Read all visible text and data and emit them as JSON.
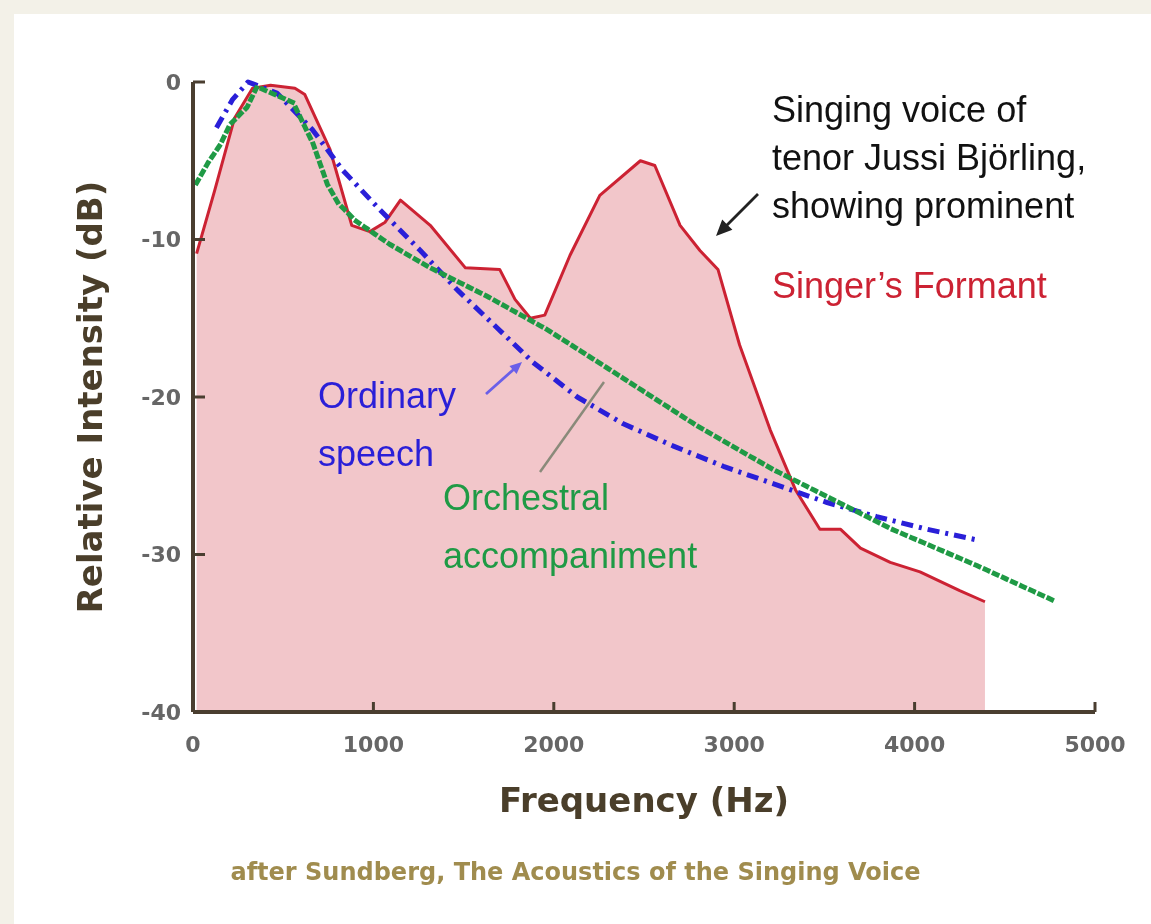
{
  "chart_data": {
    "type": "line",
    "xlabel": "Frequency (Hz)",
    "ylabel": "Relative Intensity (dB)",
    "xlim": [
      0,
      5000
    ],
    "xticks": [
      0,
      1000,
      2000,
      3000,
      4000,
      5000
    ],
    "ylim": [
      -40,
      0
    ],
    "yticks": [
      0,
      -10,
      -20,
      -30,
      -40
    ],
    "grid": false,
    "legend": false,
    "marker": "none",
    "series": [
      {
        "color": "#cc2233",
        "line_style": "solid",
        "x": [
          20,
          120,
          230,
          330,
          430,
          565,
          620,
          760,
          880,
          980,
          1065,
          1150,
          1315,
          1510,
          1700,
          1785,
          1870,
          1950,
          2090,
          2255,
          2480,
          2560,
          2700,
          2810,
          2910,
          3030,
          3200,
          3340,
          3475,
          3590,
          3700,
          3865,
          4030,
          4250,
          4390
        ],
        "values": [
          -10.9,
          -6.9,
          -2.3,
          -0.4,
          -0.2,
          -0.4,
          -0.8,
          -4.3,
          -9.1,
          -9.5,
          -8.9,
          -7.5,
          -9.1,
          -11.8,
          -11.9,
          -13.8,
          -15.0,
          -14.8,
          -11.0,
          -7.2,
          -5.0,
          -5.3,
          -9.1,
          -10.7,
          -11.9,
          -16.7,
          -22.1,
          -25.9,
          -28.4,
          -28.4,
          -29.6,
          -30.5,
          -31.1,
          -32.3,
          -33.0
        ],
        "lower": [
          -40,
          -40,
          -40,
          -40,
          -40,
          -40,
          -40,
          -40,
          -40,
          -40,
          -40,
          -40,
          -40,
          -40,
          -40,
          -40,
          -40,
          -40,
          -40,
          -40,
          -40,
          -40,
          -40,
          -40,
          -40,
          -40,
          -40,
          -40,
          -40,
          -40,
          -40,
          -40,
          -40,
          -40,
          -40
        ],
        "upper": [
          -10.9,
          -6.9,
          -2.3,
          -0.4,
          -0.2,
          -0.4,
          -0.8,
          -4.3,
          -9.1,
          -9.5,
          -8.9,
          -7.5,
          -9.1,
          -11.8,
          -11.9,
          -13.8,
          -15.0,
          -14.8,
          -11.0,
          -7.2,
          -5.0,
          -5.3,
          -9.1,
          -10.7,
          -11.9,
          -16.7,
          -22.1,
          -25.9,
          -28.4,
          -28.4,
          -29.6,
          -30.5,
          -31.1,
          -32.3,
          -33.0
        ]
      },
      {
        "name": "Ordinary speech",
        "color": "#2a1fd8",
        "line_style": "dashed",
        "x": [
          130,
          220,
          305,
          465,
          660,
          830,
          1035,
          1260,
          1465,
          1685,
          1885,
          2130,
          2385,
          2660,
          2940,
          3215,
          3515,
          3790,
          4070,
          4355
        ],
        "values": [
          -2.9,
          -1.1,
          0,
          -0.7,
          -3.0,
          -5.6,
          -8.1,
          -10.7,
          -13.2,
          -15.6,
          -17.8,
          -20.0,
          -21.7,
          -23.1,
          -24.4,
          -25.5,
          -26.7,
          -27.6,
          -28.4,
          -29.1
        ]
      },
      {
        "name": "Orchestral accompaniment",
        "color": "#1f9a45",
        "line_style": "dotted",
        "x": [
          20,
          85,
          150,
          205,
          300,
          355,
          555,
          665,
          745,
          805,
          900,
          1090,
          1315,
          1630,
          1960,
          2275,
          2790,
          3215,
          3875,
          4345,
          4785
        ],
        "values": [
          -6.4,
          -5.1,
          -4.0,
          -2.7,
          -1.6,
          -0.3,
          -1.3,
          -3.9,
          -6.5,
          -7.7,
          -8.8,
          -10.3,
          -11.8,
          -13.6,
          -15.7,
          -18.0,
          -21.8,
          -24.6,
          -28.4,
          -30.7,
          -33.0
        ]
      }
    ],
    "annotations": [
      "Singing voice of tenor Jussi Björling, showing prominent",
      "Singer’s Formant",
      "after Sundberg, The Acoustics of the Singing Voice"
    ]
  }
}
